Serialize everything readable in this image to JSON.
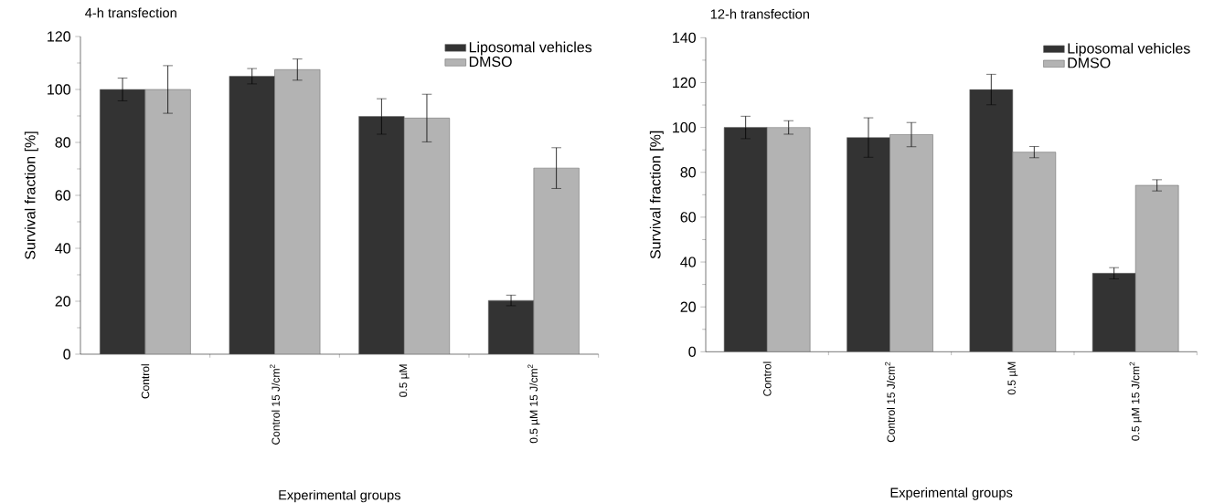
{
  "chart_data": [
    {
      "type": "bar",
      "title": "4-h transfection",
      "xlabel": "Experimental groups",
      "ylabel": "Survival fraction [%]",
      "categories": [
        "Control",
        "Control 15 J/cm$^{2}$",
        "0.5 µM",
        "0.5 µM 15 J/cm$^{2}$"
      ],
      "series": [
        {
          "name": "Liposomal vehicles",
          "color": "#333333",
          "values": [
            100,
            105,
            89.8,
            20.3
          ],
          "errors": [
            4.3,
            2.9,
            6.7,
            2
          ]
        },
        {
          "name": "DMSO",
          "color": "#b3b3b3",
          "values": [
            100,
            107.5,
            89.2,
            70.3
          ],
          "errors": [
            9,
            4,
            9,
            7.7
          ]
        }
      ],
      "ylim": [
        0,
        120
      ],
      "yticks": [
        0,
        20,
        40,
        60,
        80,
        100,
        120
      ],
      "legend": "top right",
      "grid": false
    },
    {
      "type": "bar",
      "title": "12-h transfection",
      "xlabel": "Experimental groups",
      "ylabel": "Survival fraction [%]",
      "categories": [
        "Control",
        "Control 15 J/cm$^{2}$",
        "0.5 µM",
        "0.5 µM 15 J/cm$^{2}$"
      ],
      "series": [
        {
          "name": "Liposomal vehicles",
          "color": "#333333",
          "values": [
            100,
            95.5,
            116.9,
            35
          ],
          "errors": [
            5,
            8.8,
            6.8,
            2.5
          ]
        },
        {
          "name": "DMSO",
          "color": "#b3b3b3",
          "values": [
            100,
            96.8,
            89,
            74.2
          ],
          "errors": [
            3,
            5.4,
            2.5,
            2.5
          ]
        }
      ],
      "ylim": [
        0,
        140
      ],
      "yticks": [
        0,
        20,
        40,
        60,
        80,
        100,
        120,
        140
      ],
      "legend": "top right",
      "grid": false
    }
  ]
}
